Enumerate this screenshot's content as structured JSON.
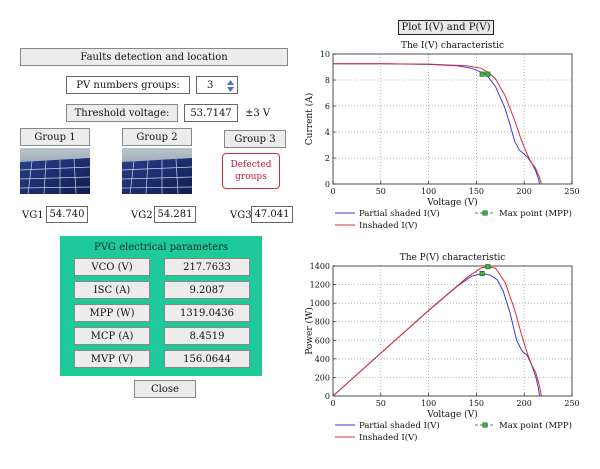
{
  "left": {
    "title": "Faults detection and location",
    "pv_groups_label": "PV numbers groups:",
    "pv_groups_value": "3",
    "threshold_label": "Threshold voltage:",
    "threshold_value": "53.7147",
    "threshold_unit": "±3 V",
    "groups": [
      {
        "label": "Group 1",
        "vg_label": "VG1",
        "vg_value": "54.740"
      },
      {
        "label": "Group 2",
        "vg_label": "VG2",
        "vg_value": "54.281"
      },
      {
        "label": "Group 3",
        "vg_label": "VG3",
        "vg_value": "47.041"
      }
    ],
    "defected_label": "Defected groups",
    "params_title": "PVG electrical parameters",
    "params": [
      {
        "name": "VCO (V)",
        "value": "217.7633"
      },
      {
        "name": "ISC (A)",
        "value": "9.2087"
      },
      {
        "name": "MPP (W)",
        "value": "1319.0436"
      },
      {
        "name": "MCP (A)",
        "value": "8.4519"
      },
      {
        "name": "MVP (V)",
        "value": "156.0644"
      }
    ],
    "close_label": "Close"
  },
  "right": {
    "plot_button": "Plot I(V) and P(V)"
  },
  "colors": {
    "partial": "#3b3bd9",
    "inshaded": "#d93030",
    "mpp": "#3cb043",
    "panel": "#1ec99a"
  },
  "chart_data": [
    {
      "type": "line",
      "title": "The I(V) characteristic",
      "xlabel": "Voltage (V)",
      "ylabel": "Current (A)",
      "xlim": [
        0,
        250
      ],
      "ylim": [
        0,
        10
      ],
      "xticks": [
        0,
        50,
        100,
        150,
        200,
        250
      ],
      "yticks": [
        0,
        2,
        4,
        6,
        8,
        10
      ],
      "grid": true,
      "legend": [
        "Partial shaded I(V)",
        "Inshaded I(V)",
        "Max point (MPP)"
      ],
      "series": [
        {
          "name": "Partial shaded I(V)",
          "color": "#3b3bd9",
          "x": [
            0,
            50,
            100,
            130,
            145,
            155,
            160,
            170,
            180,
            185,
            190,
            195,
            200,
            203,
            208,
            212,
            215,
            216
          ],
          "y": [
            9.25,
            9.25,
            9.2,
            9.1,
            8.9,
            8.6,
            8.45,
            7.5,
            5.8,
            4.6,
            3.3,
            2.6,
            2.3,
            2.1,
            1.6,
            1.0,
            0.4,
            0
          ]
        },
        {
          "name": "Inshaded I(V)",
          "color": "#d93030",
          "x": [
            0,
            50,
            100,
            140,
            155,
            162,
            170,
            180,
            190,
            197,
            203,
            208,
            212,
            216,
            218
          ],
          "y": [
            9.25,
            9.25,
            9.22,
            9.1,
            8.9,
            8.6,
            8.1,
            6.8,
            4.9,
            3.4,
            2.3,
            1.6,
            1.2,
            0.5,
            0
          ]
        },
        {
          "name": "Max point (MPP)",
          "color": "#3cb043",
          "x": [
            156,
            162
          ],
          "y": [
            8.45,
            8.45
          ]
        }
      ]
    },
    {
      "type": "line",
      "title": "The P(V) characteristic",
      "xlabel": "Voltage (V)",
      "ylabel": "Power (W)",
      "xlim": [
        0,
        250
      ],
      "ylim": [
        0,
        1400
      ],
      "xticks": [
        0,
        50,
        100,
        150,
        200,
        250
      ],
      "yticks": [
        0,
        200,
        400,
        600,
        800,
        1000,
        1200,
        1400
      ],
      "grid": true,
      "legend": [
        "Partial shaded I(V)",
        "Inshaded I(V)",
        "Max point (MPP)"
      ],
      "series": [
        {
          "name": "Partial shaded I(V)",
          "color": "#3b3bd9",
          "x": [
            0,
            50,
            100,
            130,
            145,
            156,
            165,
            172,
            178,
            185,
            192,
            198,
            203,
            208,
            212,
            215,
            216
          ],
          "y": [
            0,
            462,
            920,
            1183,
            1290,
            1319,
            1300,
            1250,
            1130,
            900,
            600,
            480,
            440,
            330,
            210,
            80,
            0
          ]
        },
        {
          "name": "Inshaded I(V)",
          "color": "#d93030",
          "x": [
            0,
            50,
            100,
            140,
            155,
            162,
            170,
            180,
            190,
            197,
            203,
            208,
            212,
            216,
            218
          ],
          "y": [
            0,
            462,
            922,
            1274,
            1380,
            1393,
            1377,
            1224,
            931,
            670,
            467,
            333,
            254,
            108,
            0
          ]
        },
        {
          "name": "Max point (MPP)",
          "color": "#3cb043",
          "x": [
            156,
            162
          ],
          "y": [
            1319,
            1393
          ]
        }
      ]
    }
  ]
}
